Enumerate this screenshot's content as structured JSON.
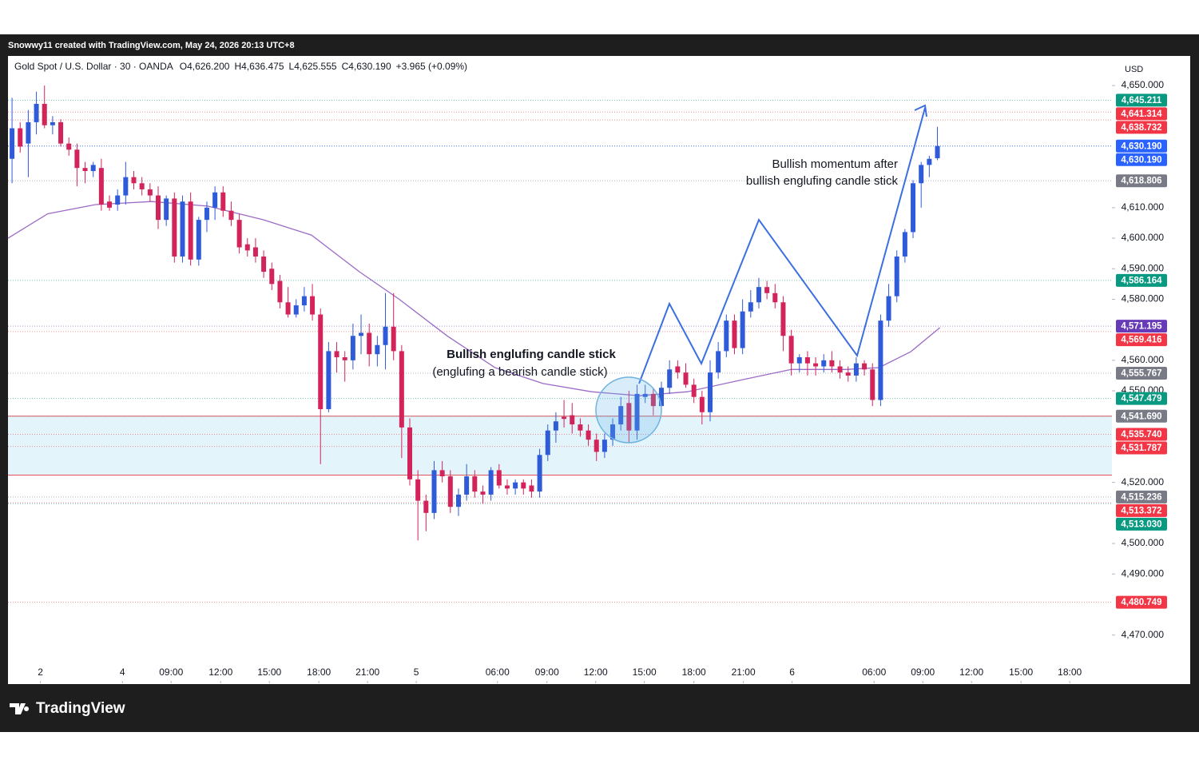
{
  "header": {
    "credit": "Snowwy11 created with TradingView.com, May 24, 2026 20:13 UTC+8",
    "symbol": "Gold Spot / U.S. Dollar · 30 · OANDA",
    "ohlc": [
      "O4,626.200",
      "H4,636.475",
      "L4,625.555",
      "C4,630.190",
      "+3.965 (+0.09%)"
    ]
  },
  "chart_data": {
    "type": "candlestick",
    "currency": "USD",
    "up_color": "#2f5bd8",
    "down_color": "#d2245a",
    "candles": [
      [
        4626,
        4646,
        4618,
        4636
      ],
      [
        4636,
        4638,
        4628,
        4630
      ],
      [
        4631,
        4642,
        4620,
        4638
      ],
      [
        4638,
        4648,
        4634,
        4644
      ],
      [
        4644,
        4650,
        4636,
        4637
      ],
      [
        4637,
        4640,
        4634,
        4638
      ],
      [
        4638,
        4639,
        4630,
        4631
      ],
      [
        4631,
        4633,
        4627,
        4629
      ],
      [
        4629,
        4631,
        4617,
        4623
      ],
      [
        4623,
        4625,
        4618,
        4622
      ],
      [
        4622,
        4625,
        4620,
        4624
      ],
      [
        4623,
        4626,
        4609,
        4611
      ],
      [
        4612,
        4614,
        4609,
        4610
      ],
      [
        4611,
        4616,
        4609,
        4614
      ],
      [
        4614,
        4625,
        4611,
        4620
      ],
      [
        4620,
        4622,
        4616,
        4618
      ],
      [
        4618,
        4620,
        4614,
        4616
      ],
      [
        4616,
        4618,
        4612,
        4614
      ],
      [
        4614,
        4617,
        4603,
        4606
      ],
      [
        4606,
        4614,
        4604,
        4613
      ],
      [
        4613,
        4615,
        4592,
        4594
      ],
      [
        4594,
        4614,
        4592,
        4612
      ],
      [
        4612,
        4615,
        4591,
        4593
      ],
      [
        4593,
        4607,
        4591,
        4606
      ],
      [
        4606,
        4612,
        4602,
        4610
      ],
      [
        4610,
        4617,
        4606,
        4615
      ],
      [
        4615,
        4617,
        4607,
        4609
      ],
      [
        4609,
        4612,
        4604,
        4606
      ],
      [
        4606,
        4608,
        4595,
        4597
      ],
      [
        4598,
        4600,
        4594,
        4596
      ],
      [
        4597,
        4600,
        4592,
        4594
      ],
      [
        4594,
        4596,
        4587,
        4589
      ],
      [
        4590,
        4592,
        4583,
        4585
      ],
      [
        4586,
        4588,
        4577,
        4579
      ],
      [
        4579,
        4584,
        4574,
        4575
      ],
      [
        4575,
        4580,
        4574,
        4578
      ],
      [
        4578,
        4584,
        4576,
        4581
      ],
      [
        4581,
        4585,
        4573,
        4575
      ],
      [
        4575,
        4577,
        4526,
        4544
      ],
      [
        4544,
        4566,
        4543,
        4563
      ],
      [
        4563,
        4566,
        4556,
        4561
      ],
      [
        4561,
        4563,
        4553,
        4560
      ],
      [
        4560,
        4572,
        4557,
        4568
      ],
      [
        4568,
        4575,
        4562,
        4569
      ],
      [
        4569,
        4572,
        4558,
        4562
      ],
      [
        4562,
        4568,
        4558,
        4565
      ],
      [
        4565,
        4582,
        4557,
        4571
      ],
      [
        4571,
        4582,
        4560,
        4563
      ],
      [
        4563,
        4565,
        4528,
        4538
      ],
      [
        4538,
        4541,
        4519,
        4521
      ],
      [
        4521,
        4524,
        4501,
        4514
      ],
      [
        4514,
        4516,
        4504,
        4510
      ],
      [
        4510,
        4527,
        4508,
        4524
      ],
      [
        4524,
        4527,
        4520,
        4522
      ],
      [
        4522,
        4524,
        4510,
        4512
      ],
      [
        4512,
        4518,
        4509,
        4516
      ],
      [
        4516,
        4526,
        4514,
        4522
      ],
      [
        4522,
        4524,
        4515,
        4517
      ],
      [
        4517,
        4519,
        4513,
        4516
      ],
      [
        4516,
        4525,
        4514,
        4524
      ],
      [
        4524,
        4526,
        4518,
        4519
      ],
      [
        4519,
        4521,
        4516,
        4518
      ],
      [
        4518,
        4521,
        4516,
        4520
      ],
      [
        4520,
        4521,
        4516,
        4518
      ],
      [
        4519,
        4521,
        4515,
        4517
      ],
      [
        4517,
        4531,
        4515,
        4529
      ],
      [
        4529,
        4539,
        4527,
        4537
      ],
      [
        4537,
        4543,
        4533,
        4540
      ],
      [
        4541.5,
        4547,
        4538,
        4540.8
      ],
      [
        4542,
        4546,
        4536,
        4539
      ],
      [
        4539,
        4541,
        4535,
        4537
      ],
      [
        4537,
        4539,
        4532,
        4534
      ],
      [
        4534,
        4536,
        4527,
        4530
      ],
      [
        4530,
        4536,
        4528,
        4534
      ],
      [
        4534,
        4541,
        4532,
        4539
      ],
      [
        4539,
        4548,
        4537,
        4545
      ],
      [
        4546,
        4550,
        4533,
        4537
      ],
      [
        4537,
        4552,
        4534,
        4549
      ],
      [
        4548,
        4552,
        4546,
        4549
      ],
      [
        4549,
        4551,
        4542,
        4545
      ],
      [
        4545,
        4553,
        4543,
        4551
      ],
      [
        4551,
        4560,
        4549,
        4557
      ],
      [
        4558,
        4560,
        4554,
        4556
      ],
      [
        4556,
        4559,
        4551,
        4552
      ],
      [
        4552,
        4554,
        4546,
        4548
      ],
      [
        4548,
        4550,
        4539,
        4543
      ],
      [
        4543,
        4560,
        4540,
        4556
      ],
      [
        4556,
        4566,
        4554,
        4563
      ],
      [
        4563,
        4575,
        4561,
        4573
      ],
      [
        4573,
        4575,
        4562,
        4564
      ],
      [
        4564,
        4580,
        4562,
        4576
      ],
      [
        4576,
        4583,
        4574,
        4579
      ],
      [
        4579,
        4587,
        4577,
        4584
      ],
      [
        4584,
        4586,
        4580,
        4582
      ],
      [
        4582,
        4585,
        4577,
        4579
      ],
      [
        4579,
        4581,
        4563,
        4568
      ],
      [
        4568,
        4570,
        4555,
        4559
      ],
      [
        4559,
        4562,
        4556,
        4561
      ],
      [
        4561,
        4563,
        4555,
        4559
      ],
      [
        4559,
        4561,
        4555,
        4558
      ],
      [
        4558,
        4562,
        4556,
        4560
      ],
      [
        4560,
        4563,
        4556,
        4558
      ],
      [
        4558,
        4560,
        4554,
        4556
      ],
      [
        4556,
        4558,
        4553,
        4555
      ],
      [
        4555,
        4561,
        4553,
        4559
      ],
      [
        4559,
        4560,
        4555,
        4557
      ],
      [
        4557,
        4559,
        4545,
        4547
      ],
      [
        4547,
        4575,
        4545,
        4573
      ],
      [
        4573,
        4585,
        4571,
        4581
      ],
      [
        4581,
        4596,
        4579,
        4594
      ],
      [
        4594,
        4603,
        4592,
        4602
      ],
      [
        4602,
        4619,
        4600,
        4618
      ],
      [
        4618,
        4625,
        4610,
        4624
      ],
      [
        4624,
        4627,
        4620,
        4626
      ],
      [
        4626.2,
        4636.475,
        4625.555,
        4630.19
      ]
    ],
    "xlim": [
      -0.5,
      135.5
    ],
    "xticks": [
      {
        "value": 3.5,
        "label": "2"
      },
      {
        "value": 13.6,
        "label": "4"
      },
      {
        "value": 19.6,
        "label": "09:00"
      },
      {
        "value": 25.7,
        "label": "12:00"
      },
      {
        "value": 31.7,
        "label": "15:00"
      },
      {
        "value": 37.8,
        "label": "18:00"
      },
      {
        "value": 43.8,
        "label": "21:00"
      },
      {
        "value": 49.8,
        "label": "5"
      },
      {
        "value": 59.8,
        "label": "06:00"
      },
      {
        "value": 65.9,
        "label": "09:00"
      },
      {
        "value": 71.9,
        "label": "12:00"
      },
      {
        "value": 77.9,
        "label": "15:00"
      },
      {
        "value": 84.0,
        "label": "18:00"
      },
      {
        "value": 90.1,
        "label": "21:00"
      },
      {
        "value": 96.1,
        "label": "6"
      },
      {
        "value": 106.2,
        "label": "06:00"
      },
      {
        "value": 112.2,
        "label": "09:00"
      },
      {
        "value": 118.2,
        "label": "12:00"
      },
      {
        "value": 124.3,
        "label": "15:00"
      },
      {
        "value": 130.3,
        "label": "18:00"
      }
    ],
    "ylim": [
      4454.2,
      4659.7
    ],
    "yticks": [
      {
        "value": 4650,
        "label": "4,650.000"
      },
      {
        "value": 4610,
        "label": "4,610.000"
      },
      {
        "value": 4600,
        "label": "4,600.000"
      },
      {
        "value": 4590,
        "label": "4,590.000"
      },
      {
        "value": 4580,
        "label": "4,580.000"
      },
      {
        "value": 4560,
        "label": "4,560.000"
      },
      {
        "value": 4550,
        "label": "4,550.000"
      },
      {
        "value": 4520,
        "label": "4,520.000"
      },
      {
        "value": 4500,
        "label": "4,500.000"
      },
      {
        "value": 4490,
        "label": "4,490.000"
      },
      {
        "value": 4470,
        "label": "4,470.000"
      }
    ],
    "ma": {
      "color": "#9c6bc7",
      "x": [
        -0.5,
        4.4,
        10.3,
        17.2,
        24.1,
        31,
        36.9,
        42.8,
        47.7,
        53.6,
        59.5,
        65.4,
        71.4,
        77.3,
        83.2,
        90.1,
        96,
        102.8,
        106.8,
        110.7,
        114.3
      ],
      "values": [
        4600,
        4608,
        4611,
        4612,
        4610.5,
        4606,
        4601,
        4589,
        4580,
        4568,
        4557.6,
        4552.4,
        4549.7,
        4548.4,
        4549.7,
        4553.7,
        4557,
        4557,
        4557.6,
        4562.8,
        4570.7
      ]
    },
    "zone": [
      4522.4,
      4541.69
    ],
    "price_labels": [
      {
        "value": 4645.211,
        "label": "4,645.211",
        "color": "#089981"
      },
      {
        "value": 4641.314,
        "label": "4,641.314",
        "color": "#f23645"
      },
      {
        "value": 4638.732,
        "label": "4,638.732",
        "color": "#f23645"
      },
      {
        "value": 4630.19,
        "label": "4,630.190",
        "color": "#2962ff"
      },
      {
        "value": 4630.19,
        "label": "4,630.190",
        "color": "#2962ff"
      },
      {
        "value": 4618.806,
        "label": "4,618.806",
        "color": "#787b86"
      },
      {
        "value": 4586.164,
        "label": "4,586.164",
        "color": "#089981"
      },
      {
        "value": 4571.195,
        "label": "4,571.195",
        "color": "#673ab7"
      },
      {
        "value": 4569.416,
        "label": "4,569.416",
        "color": "#f23645"
      },
      {
        "value": 4555.767,
        "label": "4,555.767",
        "color": "#787b86"
      },
      {
        "value": 4547.479,
        "label": "4,547.479",
        "color": "#089981"
      },
      {
        "value": 4541.69,
        "label": "4,541.690",
        "color": "#787b86"
      },
      {
        "value": 4535.74,
        "label": "4,535.740",
        "color": "#f23645"
      },
      {
        "value": 4531.787,
        "label": "4,531.787",
        "color": "#f23645"
      },
      {
        "value": 4515.236,
        "label": "4,515.236",
        "color": "#787b86"
      },
      {
        "value": 4513.372,
        "label": "4,513.372",
        "color": "#f23645"
      },
      {
        "value": 4513.03,
        "label": "4,513.030",
        "color": "#089981"
      },
      {
        "value": 4480.749,
        "label": "4,480.749",
        "color": "#f23645"
      }
    ],
    "annotations": [
      "Bullish englufing candle stick",
      "(englufing a bearish candle stick)",
      "Bullish momentum after",
      "bullish englufing candle stick"
    ]
  },
  "footer": {
    "brand": "TradingView"
  }
}
